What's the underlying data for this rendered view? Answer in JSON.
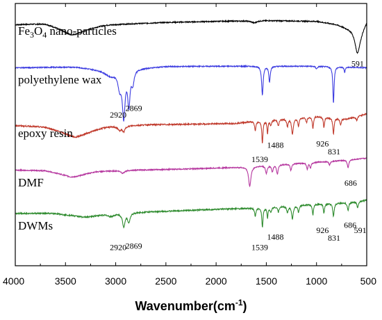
{
  "chart_data": {
    "type": "line",
    "title": "",
    "xlabel": "Wavenumber(cm",
    "xlabel_sup": "-1",
    "xlabel_close": ")",
    "ylabel": "",
    "xlim": [
      4000,
      500
    ],
    "x_reversed": true,
    "x_ticks": [
      "4000",
      "3500",
      "3000",
      "2500",
      "2000",
      "1500",
      "1000",
      "500"
    ],
    "grid": false,
    "legend": "none",
    "series": [
      {
        "name_parts": [
          {
            "t": "Fe",
            "sub": false
          },
          {
            "t": "3",
            "sub": true
          },
          {
            "t": "O",
            "sub": false
          },
          {
            "t": "4",
            "sub": true
          },
          {
            "t": " nano-particles",
            "sub": false
          }
        ],
        "color": "#000000",
        "offset": 0.92,
        "baseline": [
          [
            4000,
            0.0
          ],
          [
            3700,
            0.005
          ],
          [
            3450,
            -0.02
          ],
          [
            3100,
            0.0
          ],
          [
            2500,
            0.008
          ],
          [
            2000,
            0.012
          ],
          [
            1500,
            0.015
          ],
          [
            1000,
            0.012
          ],
          [
            800,
            0.0
          ],
          [
            650,
            -0.02
          ],
          [
            600,
            -0.04
          ],
          [
            560,
            -0.03
          ],
          [
            500,
            0.01
          ]
        ],
        "peaks": [
          [
            3420,
            0.02,
            140
          ],
          [
            1620,
            0.008,
            30
          ],
          [
            591,
            0.07,
            28
          ]
        ],
        "noise": 0.002,
        "peak_labels": [
          {
            "text": "591",
            "x": 591,
            "y": 0.76
          }
        ]
      },
      {
        "name": "polyethylene wax",
        "color": "#3a3ae0",
        "offset": 0.755,
        "baseline": [
          [
            4000,
            0.0
          ],
          [
            3400,
            0.003
          ],
          [
            3100,
            -0.01
          ],
          [
            2500,
            0.005
          ],
          [
            1800,
            0.006
          ],
          [
            1000,
            0.006
          ],
          [
            500,
            0.0
          ]
        ],
        "peaks": [
          [
            3050,
            0.02,
            60
          ],
          [
            2960,
            0.06,
            22
          ],
          [
            2920,
            0.17,
            16
          ],
          [
            2869,
            0.13,
            14
          ],
          [
            2830,
            0.05,
            15
          ],
          [
            1539,
            0.11,
            9
          ],
          [
            1468,
            0.06,
            8
          ],
          [
            1000,
            0.01,
            10
          ],
          [
            831,
            0.14,
            7
          ],
          [
            720,
            0.02,
            6
          ]
        ],
        "noise": 0.002,
        "peak_labels": [
          {
            "text": "2920",
            "x": 2975,
            "y": 0.565
          },
          {
            "text": "2869",
            "x": 2820,
            "y": 0.59
          }
        ]
      },
      {
        "name": "epoxy resin",
        "color": "#c0392b",
        "offset": 0.54,
        "baseline": [
          [
            4000,
            -0.005
          ],
          [
            3700,
            -0.01
          ],
          [
            3400,
            -0.04
          ],
          [
            3100,
            -0.01
          ],
          [
            2700,
            -0.002
          ],
          [
            2200,
            0.0
          ],
          [
            1800,
            0.003
          ],
          [
            1650,
            0.01
          ],
          [
            1000,
            0.03
          ],
          [
            700,
            0.02
          ],
          [
            600,
            0.03
          ],
          [
            500,
            0.04
          ]
        ],
        "peaks": [
          [
            3400,
            0.01,
            150
          ],
          [
            2960,
            0.015,
            20
          ],
          [
            2920,
            0.02,
            15
          ],
          [
            1610,
            0.035,
            8
          ],
          [
            1539,
            0.085,
            7
          ],
          [
            1488,
            0.05,
            6
          ],
          [
            1455,
            0.02,
            8
          ],
          [
            1380,
            0.025,
            8
          ],
          [
            1290,
            0.03,
            8
          ],
          [
            1240,
            0.06,
            10
          ],
          [
            1180,
            0.03,
            8
          ],
          [
            1100,
            0.02,
            8
          ],
          [
            1036,
            0.045,
            7
          ],
          [
            926,
            0.04,
            7
          ],
          [
            831,
            0.06,
            8
          ],
          [
            760,
            0.025,
            8
          ],
          [
            600,
            0.015,
            10
          ]
        ],
        "noise": 0.0025,
        "peak_labels": [
          {
            "text": "1539",
            "x": 1565,
            "y": 0.395
          },
          {
            "text": "1488",
            "x": 1410,
            "y": 0.45
          },
          {
            "text": "926",
            "x": 940,
            "y": 0.455
          },
          {
            "text": "831",
            "x": 825,
            "y": 0.425
          }
        ]
      },
      {
        "name": "DMF",
        "color": "#b5359e",
        "offset": 0.375,
        "baseline": [
          [
            4000,
            -0.01
          ],
          [
            3700,
            -0.012
          ],
          [
            3450,
            -0.03
          ],
          [
            3200,
            -0.015
          ],
          [
            2800,
            -0.01
          ],
          [
            2300,
            -0.006
          ],
          [
            1800,
            0.0
          ],
          [
            1200,
            0.015
          ],
          [
            800,
            0.025
          ],
          [
            500,
            0.035
          ]
        ],
        "peaks": [
          [
            3400,
            0.008,
            120
          ],
          [
            2930,
            0.01,
            20
          ],
          [
            1665,
            0.075,
            14
          ],
          [
            1500,
            0.03,
            10
          ],
          [
            1440,
            0.025,
            9
          ],
          [
            1390,
            0.035,
            9
          ],
          [
            1255,
            0.025,
            9
          ],
          [
            1092,
            0.025,
            8
          ],
          [
            1060,
            0.02,
            8
          ],
          [
            870,
            0.015,
            8
          ],
          [
            686,
            0.03,
            9
          ]
        ],
        "noise": 0.002,
        "peak_labels": [
          {
            "text": "686",
            "x": 660,
            "y": 0.305
          }
        ]
      },
      {
        "name": "DWMs",
        "color": "#2e8b2e",
        "offset": 0.205,
        "baseline": [
          [
            4000,
            -0.005
          ],
          [
            3600,
            -0.006
          ],
          [
            3300,
            -0.02
          ],
          [
            3100,
            -0.008
          ],
          [
            2700,
            0.0
          ],
          [
            2000,
            0.01
          ],
          [
            1600,
            0.015
          ],
          [
            1000,
            0.03
          ],
          [
            700,
            0.035
          ],
          [
            500,
            0.045
          ]
        ],
        "peaks": [
          [
            3050,
            0.01,
            40
          ],
          [
            2920,
            0.05,
            15
          ],
          [
            2869,
            0.035,
            14
          ],
          [
            1610,
            0.03,
            8
          ],
          [
            1539,
            0.075,
            7
          ],
          [
            1488,
            0.04,
            6
          ],
          [
            1455,
            0.02,
            8
          ],
          [
            1380,
            0.02,
            8
          ],
          [
            1290,
            0.025,
            8
          ],
          [
            1240,
            0.05,
            10
          ],
          [
            1180,
            0.025,
            8
          ],
          [
            1036,
            0.04,
            7
          ],
          [
            926,
            0.035,
            7
          ],
          [
            831,
            0.05,
            8
          ],
          [
            686,
            0.03,
            8
          ],
          [
            591,
            0.025,
            8
          ]
        ],
        "noise": 0.0025,
        "peak_labels": [
          {
            "text": "2920",
            "x": 2975,
            "y": 0.06
          },
          {
            "text": "2869",
            "x": 2820,
            "y": 0.065
          },
          {
            "text": "1539",
            "x": 1565,
            "y": 0.06
          },
          {
            "text": "1488",
            "x": 1410,
            "y": 0.1
          },
          {
            "text": "926",
            "x": 940,
            "y": 0.125
          },
          {
            "text": "831",
            "x": 825,
            "y": 0.095
          },
          {
            "text": "686",
            "x": 665,
            "y": 0.145
          },
          {
            "text": "591",
            "x": 565,
            "y": 0.125
          }
        ]
      }
    ]
  }
}
